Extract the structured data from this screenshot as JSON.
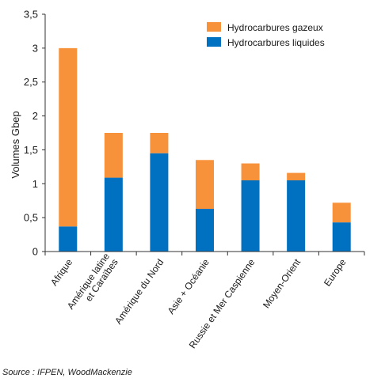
{
  "chart_data": {
    "type": "bar",
    "stacked": true,
    "categories": [
      "Afrique",
      "Amérique latine et Caraïbes",
      "Amérique du Nord",
      "Asie + Océanie",
      "Russie et Mer Caspienne",
      "Moyen-Orient",
      "Europe"
    ],
    "category_label_lines": [
      [
        "Afrique"
      ],
      [
        "Amérique latine",
        "et Caraïbes"
      ],
      [
        "Amérique du Nord"
      ],
      [
        "Asie + Océanie"
      ],
      [
        "Russie et Mer Caspienne"
      ],
      [
        "Moyen-Orient"
      ],
      [
        "Europe"
      ]
    ],
    "series": [
      {
        "name": "Hydrocarbures liquides",
        "color": "#0070c0",
        "values": [
          0.37,
          1.09,
          1.45,
          0.63,
          1.05,
          1.05,
          0.43
        ]
      },
      {
        "name": "Hydrocarbures gazeux",
        "color": "#f7923a",
        "values": [
          2.63,
          0.66,
          0.3,
          0.72,
          0.25,
          0.11,
          0.29
        ]
      }
    ],
    "legend_order": [
      "Hydrocarbures gazeux",
      "Hydrocarbures liquides"
    ],
    "ylabel": "Volumes Gbep",
    "xlabel": "",
    "ylim": [
      0,
      3.5
    ],
    "yticks": [
      0,
      0.5,
      1,
      1.5,
      2,
      2.5,
      3,
      3.5
    ],
    "ytick_labels": [
      "0",
      "0,5",
      "1",
      "1,5",
      "2",
      "2,5",
      "3",
      "3,5"
    ],
    "grid": false,
    "legend_position": "top-right"
  },
  "source_note": "Source : IFPEN, WoodMackenzie"
}
